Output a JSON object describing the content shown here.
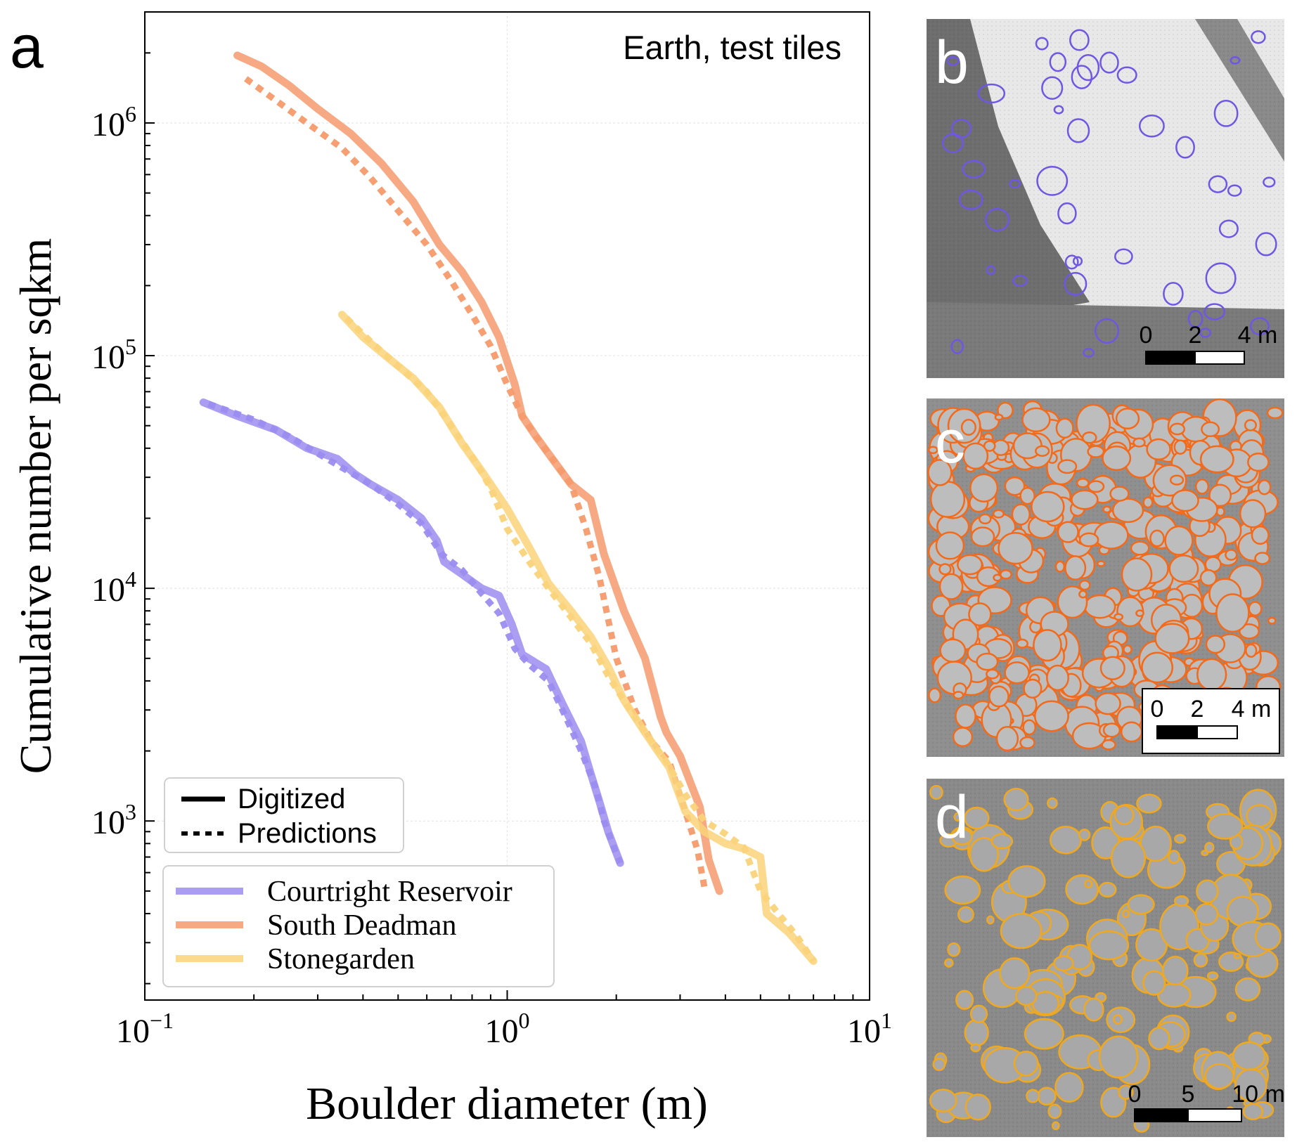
{
  "panel_a": {
    "label": "a",
    "annotation": "Earth, test tiles",
    "linestyle_legend": {
      "solid": "Digitized",
      "dashed": "Predictions"
    }
  },
  "panels": [
    {
      "label": "b",
      "scale": {
        "ticks": [
          "0",
          "2",
          "4 m"
        ]
      },
      "color": "#6f57e3"
    },
    {
      "label": "c",
      "scale": {
        "ticks": [
          "0",
          "2",
          "4 m"
        ]
      },
      "color": "#f26a1a"
    },
    {
      "label": "d",
      "scale": {
        "ticks": [
          "0",
          "5",
          "10 m"
        ]
      },
      "color": "#f0a81e"
    }
  ],
  "chart_data": {
    "type": "line",
    "title": "",
    "xlabel": "Boulder diameter (m)",
    "ylabel": "Cumulative number per sqkm",
    "xscale": "log",
    "yscale": "log",
    "xlim": [
      0.1,
      10
    ],
    "ylim": [
      170,
      3000000
    ],
    "grid": true,
    "legend_position": "lower-left",
    "x_ticks": [
      {
        "value": 0.1,
        "base": "10",
        "exp": "−1"
      },
      {
        "value": 1,
        "base": "10",
        "exp": "0"
      },
      {
        "value": 10,
        "base": "10",
        "exp": "1"
      }
    ],
    "y_ticks": [
      {
        "value": 1000,
        "base": "10",
        "exp": "3"
      },
      {
        "value": 10000,
        "base": "10",
        "exp": "4"
      },
      {
        "value": 100000,
        "base": "10",
        "exp": "5"
      },
      {
        "value": 1000000,
        "base": "10",
        "exp": "6"
      }
    ],
    "series": [
      {
        "name": "Courtright Reservoir",
        "color": "#9b8cf0",
        "digitized": {
          "x": [
            0.145,
            0.18,
            0.23,
            0.28,
            0.34,
            0.38,
            0.42,
            0.5,
            0.58,
            0.64,
            0.67,
            0.75,
            0.85,
            0.95,
            1.03,
            1.1,
            1.28,
            1.42,
            1.6,
            1.7,
            1.8,
            1.9,
            2.05
          ],
          "y": [
            63000,
            55000,
            48000,
            40000,
            36000,
            31000,
            28000,
            24000,
            20000,
            16000,
            13000,
            11500,
            10000,
            9300,
            7000,
            5200,
            4500,
            3200,
            2200,
            1600,
            1200,
            900,
            660
          ]
        },
        "predictions": {
          "x": [
            0.15,
            0.2,
            0.25,
            0.3,
            0.35,
            0.42,
            0.5,
            0.58,
            0.66,
            0.75,
            0.85,
            0.95,
            1.05,
            1.15,
            1.3,
            1.45,
            1.6,
            1.75,
            1.85,
            1.95,
            2.05
          ],
          "y": [
            62000,
            53000,
            45000,
            38000,
            33000,
            28000,
            23000,
            19000,
            14000,
            12000,
            9500,
            7800,
            5500,
            4700,
            4000,
            2800,
            2000,
            1400,
            1000,
            800,
            660
          ]
        }
      },
      {
        "name": "South Deadman",
        "color": "#f59a6c",
        "digitized": {
          "x": [
            0.18,
            0.21,
            0.25,
            0.3,
            0.37,
            0.45,
            0.55,
            0.65,
            0.75,
            0.85,
            0.95,
            1.05,
            1.1,
            1.2,
            1.35,
            1.5,
            1.7,
            1.85,
            2.1,
            2.4,
            2.65,
            2.75,
            3.0,
            3.4,
            3.6,
            3.85
          ],
          "y": [
            1950000,
            1750000,
            1450000,
            1150000,
            900000,
            670000,
            460000,
            300000,
            230000,
            170000,
            120000,
            75000,
            55000,
            45000,
            35000,
            28000,
            24000,
            14000,
            8000,
            5000,
            2800,
            2400,
            1900,
            1150,
            680,
            500
          ]
        },
        "predictions": {
          "x": [
            0.19,
            0.23,
            0.28,
            0.35,
            0.42,
            0.5,
            0.6,
            0.7,
            0.8,
            0.9,
            1.0,
            1.1,
            1.2,
            1.35,
            1.5,
            1.65,
            1.8,
            2.0,
            2.25,
            2.5,
            2.8,
            3.1,
            3.35,
            3.5
          ],
          "y": [
            1550000,
            1250000,
            1000000,
            780000,
            580000,
            420000,
            300000,
            210000,
            150000,
            110000,
            75000,
            55000,
            45000,
            35000,
            28000,
            18000,
            11000,
            5000,
            3000,
            2200,
            1800,
            1100,
            750,
            520
          ]
        }
      },
      {
        "name": "Stonegarden",
        "color": "#fad37a",
        "digitized": {
          "x": [
            0.35,
            0.4,
            0.48,
            0.55,
            0.65,
            0.75,
            0.85,
            1.0,
            1.15,
            1.3,
            1.5,
            1.7,
            1.9,
            2.1,
            2.4,
            2.6,
            2.8,
            3.1,
            3.5,
            4.0,
            4.5,
            5.0,
            5.2,
            6.0,
            7.0
          ],
          "y": [
            150000,
            120000,
            95000,
            80000,
            60000,
            42000,
            32000,
            22000,
            15000,
            10500,
            8000,
            6200,
            4600,
            3300,
            2400,
            2000,
            1700,
            1100,
            900,
            800,
            760,
            700,
            400,
            330,
            250
          ]
        },
        "predictions": {
          "x": [
            0.36,
            0.42,
            0.5,
            0.6,
            0.7,
            0.8,
            0.9,
            1.0,
            1.15,
            1.3,
            1.5,
            1.7,
            1.9,
            2.15,
            2.45,
            2.75,
            3.1,
            3.5,
            4.0,
            4.5,
            5.0,
            5.6,
            6.3,
            7.0
          ],
          "y": [
            145000,
            115000,
            90000,
            70000,
            50000,
            37000,
            27000,
            18000,
            13000,
            10000,
            7500,
            5800,
            4200,
            3100,
            2300,
            1800,
            1300,
            1000,
            880,
            770,
            500,
            400,
            320,
            250
          ]
        }
      }
    ]
  }
}
